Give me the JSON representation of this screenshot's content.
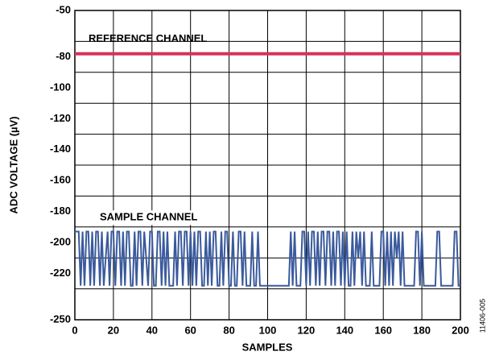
{
  "chart_data": {
    "type": "line",
    "y_label": "ADC VOLTAGE (µV)",
    "x_label": "SAMPLES",
    "side_note": "11406-005",
    "xlim": [
      0,
      200
    ],
    "xticks": [
      0,
      20,
      40,
      60,
      80,
      100,
      120,
      140,
      160,
      180,
      200
    ],
    "ylim": [
      -250,
      -50
    ],
    "yticks": [
      -250,
      -220,
      -200,
      -180,
      -160,
      -140,
      -120,
      -100,
      -80,
      -50
    ],
    "ygrid": [
      -230,
      -210,
      -190,
      -170,
      -150,
      -130,
      -110,
      -90,
      -70
    ],
    "grid": true,
    "series": [
      {
        "name": "REFERENCE CHANNEL",
        "color": "#d6325a",
        "width": 4,
        "x": [
          0,
          200
        ],
        "values": [
          -78,
          -78
        ]
      },
      {
        "name": "SAMPLE CHANNEL",
        "color": "#3a5a9c",
        "width": 2,
        "x": [
          0,
          1,
          2,
          3,
          4,
          5,
          6,
          7,
          8,
          9,
          10,
          11,
          12,
          13,
          14,
          15,
          16,
          17,
          18,
          19,
          20,
          21,
          22,
          23,
          24,
          25,
          26,
          27,
          28,
          29,
          30,
          31,
          32,
          33,
          34,
          35,
          36,
          37,
          38,
          39,
          40,
          41,
          42,
          43,
          44,
          45,
          46,
          47,
          48,
          49,
          50,
          51,
          52,
          53,
          54,
          55,
          56,
          57,
          58,
          59,
          60,
          61,
          62,
          63,
          64,
          65,
          66,
          67,
          68,
          69,
          70,
          71,
          72,
          73,
          74,
          75,
          76,
          77,
          78,
          79,
          80,
          81,
          82,
          83,
          84,
          85,
          86,
          87,
          88,
          89,
          90,
          91,
          92,
          93,
          94,
          95,
          96,
          97,
          98,
          99,
          100,
          101,
          102,
          103,
          104,
          105,
          106,
          107,
          108,
          109,
          110,
          111,
          112,
          113,
          114,
          115,
          116,
          117,
          118,
          119,
          120,
          121,
          122,
          123,
          124,
          125,
          126,
          127,
          128,
          129,
          130,
          131,
          132,
          133,
          134,
          135,
          136,
          137,
          138,
          139,
          140,
          141,
          142,
          143,
          144,
          145,
          146,
          147,
          148,
          149,
          150,
          151,
          152,
          153,
          154,
          155,
          156,
          157,
          158,
          159,
          160,
          161,
          162,
          163,
          164,
          165,
          166,
          167,
          168,
          169,
          170,
          171,
          172,
          173,
          174,
          175,
          176,
          177,
          178,
          179,
          180,
          181,
          182,
          183,
          184,
          185,
          186,
          187,
          188,
          189,
          190,
          191,
          192,
          193,
          194,
          195,
          196,
          197,
          198,
          199,
          200
        ],
        "values": [
          -193,
          -193,
          -193,
          -228,
          -193,
          -228,
          -193,
          -193,
          -228,
          -193,
          -228,
          -193,
          -193,
          -228,
          -193,
          -228,
          -210,
          -193,
          -228,
          -193,
          -193,
          -228,
          -193,
          -193,
          -228,
          -193,
          -228,
          -193,
          -193,
          -228,
          -228,
          -193,
          -228,
          -193,
          -193,
          -228,
          -193,
          -210,
          -228,
          -193,
          -193,
          -228,
          -228,
          -193,
          -193,
          -228,
          -193,
          -228,
          -193,
          -228,
          -228,
          -228,
          -193,
          -228,
          -193,
          -193,
          -228,
          -193,
          -193,
          -228,
          -193,
          -228,
          -193,
          -228,
          -193,
          -193,
          -228,
          -228,
          -193,
          -228,
          -193,
          -228,
          -193,
          -193,
          -228,
          -228,
          -193,
          -228,
          -193,
          -193,
          -228,
          -228,
          -193,
          -228,
          -228,
          -193,
          -193,
          -228,
          -193,
          -228,
          -228,
          -228,
          -193,
          -228,
          -228,
          -193,
          -228,
          -228,
          -228,
          -228,
          -228,
          -228,
          -228,
          -228,
          -228,
          -228,
          -228,
          -228,
          -228,
          -228,
          -228,
          -228,
          -193,
          -228,
          -193,
          -228,
          -228,
          -228,
          -193,
          -193,
          -228,
          -193,
          -228,
          -193,
          -193,
          -228,
          -193,
          -228,
          -193,
          -193,
          -228,
          -193,
          -193,
          -228,
          -193,
          -228,
          -193,
          -193,
          -228,
          -193,
          -228,
          -193,
          -228,
          -228,
          -193,
          -228,
          -193,
          -210,
          -193,
          -228,
          -193,
          -228,
          -228,
          -228,
          -193,
          -228,
          -228,
          -228,
          -228,
          -193,
          -193,
          -228,
          -193,
          -228,
          -193,
          -228,
          -193,
          -210,
          -193,
          -228,
          -193,
          -228,
          -228,
          -228,
          -228,
          -228,
          -228,
          -193,
          -193,
          -228,
          -193,
          -228,
          -228,
          -228,
          -228,
          -228,
          -228,
          -228,
          -193,
          -193,
          -228,
          -228,
          -228,
          -228,
          -228,
          -228,
          -228,
          -193,
          -193,
          -228,
          -228
        ]
      }
    ]
  }
}
